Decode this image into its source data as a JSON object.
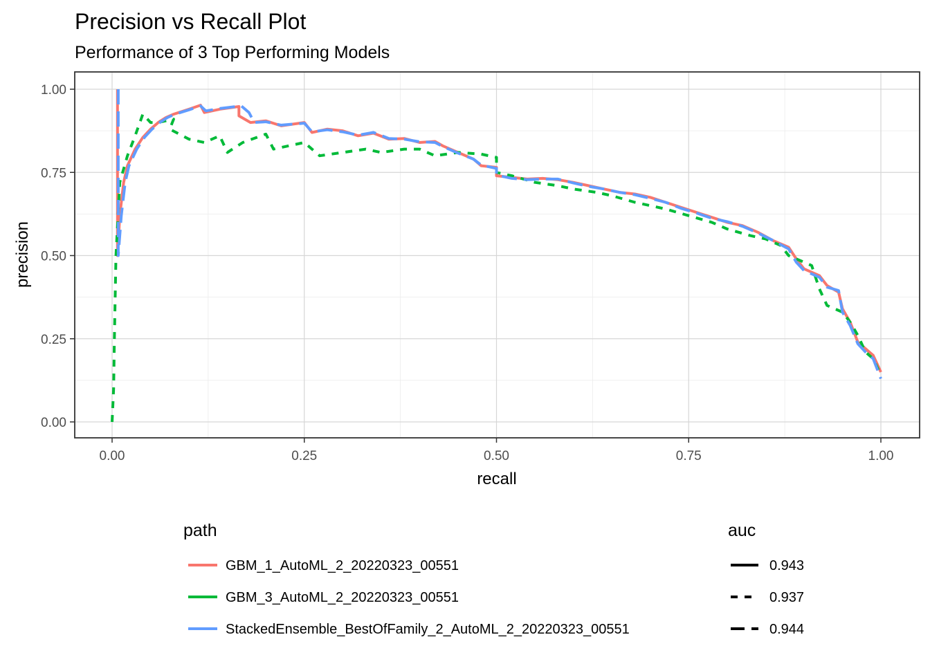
{
  "chart_data": {
    "type": "line",
    "title": "Precision vs Recall Plot",
    "subtitle": "Performance of 3 Top Performing Models",
    "xlabel": "recall",
    "ylabel": "precision",
    "xlim": [
      0,
      1
    ],
    "ylim": [
      0,
      1
    ],
    "xticks": [
      "0.00",
      "0.25",
      "0.50",
      "0.75",
      "1.00"
    ],
    "yticks": [
      "0.00",
      "0.25",
      "0.50",
      "0.75",
      "1.00"
    ],
    "grid": true,
    "legend_position": "bottom",
    "color_legend": {
      "title": "path",
      "entries": [
        {
          "label": "GBM_1_AutoML_2_20220323_00551",
          "color": "#F8766D"
        },
        {
          "label": "GBM_3_AutoML_2_20220323_00551",
          "color": "#00BA38"
        },
        {
          "label": "StackedEnsemble_BestOfFamily_2_AutoML_2_20220323_00551",
          "color": "#619CFF"
        }
      ]
    },
    "linetype_legend": {
      "title": "auc",
      "entries": [
        {
          "label": "0.943",
          "linetype": "solid"
        },
        {
          "label": "0.937",
          "linetype": "dashed"
        },
        {
          "label": "0.944",
          "linetype": "longdash"
        }
      ]
    },
    "series": [
      {
        "name": "GBM_1_AutoML_2_20220323_00551",
        "auc": "0.943",
        "color": "#F8766D",
        "linetype": "solid",
        "points": [
          [
            0.007,
            1.0
          ],
          [
            0.007,
            0.5
          ],
          [
            0.01,
            0.62
          ],
          [
            0.015,
            0.72
          ],
          [
            0.02,
            0.77
          ],
          [
            0.03,
            0.82
          ],
          [
            0.04,
            0.855
          ],
          [
            0.05,
            0.88
          ],
          [
            0.06,
            0.9
          ],
          [
            0.07,
            0.915
          ],
          [
            0.08,
            0.925
          ],
          [
            0.1,
            0.94
          ],
          [
            0.115,
            0.952
          ],
          [
            0.12,
            0.93
          ],
          [
            0.14,
            0.94
          ],
          [
            0.165,
            0.948
          ],
          [
            0.165,
            0.92
          ],
          [
            0.18,
            0.9
          ],
          [
            0.2,
            0.905
          ],
          [
            0.22,
            0.89
          ],
          [
            0.25,
            0.9
          ],
          [
            0.26,
            0.87
          ],
          [
            0.28,
            0.88
          ],
          [
            0.3,
            0.875
          ],
          [
            0.32,
            0.86
          ],
          [
            0.34,
            0.868
          ],
          [
            0.36,
            0.85
          ],
          [
            0.38,
            0.852
          ],
          [
            0.4,
            0.84
          ],
          [
            0.42,
            0.843
          ],
          [
            0.43,
            0.83
          ],
          [
            0.45,
            0.81
          ],
          [
            0.47,
            0.79
          ],
          [
            0.48,
            0.77
          ],
          [
            0.5,
            0.765
          ],
          [
            0.5,
            0.74
          ],
          [
            0.52,
            0.735
          ],
          [
            0.54,
            0.73
          ],
          [
            0.56,
            0.732
          ],
          [
            0.58,
            0.728
          ],
          [
            0.6,
            0.72
          ],
          [
            0.62,
            0.71
          ],
          [
            0.64,
            0.7
          ],
          [
            0.66,
            0.69
          ],
          [
            0.68,
            0.685
          ],
          [
            0.7,
            0.675
          ],
          [
            0.72,
            0.66
          ],
          [
            0.74,
            0.645
          ],
          [
            0.76,
            0.63
          ],
          [
            0.78,
            0.615
          ],
          [
            0.8,
            0.6
          ],
          [
            0.82,
            0.59
          ],
          [
            0.84,
            0.57
          ],
          [
            0.86,
            0.545
          ],
          [
            0.88,
            0.525
          ],
          [
            0.89,
            0.49
          ],
          [
            0.9,
            0.46
          ],
          [
            0.92,
            0.44
          ],
          [
            0.93,
            0.41
          ],
          [
            0.945,
            0.39
          ],
          [
            0.95,
            0.34
          ],
          [
            0.96,
            0.3
          ],
          [
            0.97,
            0.24
          ],
          [
            0.98,
            0.22
          ],
          [
            0.99,
            0.2
          ],
          [
            1.0,
            0.15
          ]
        ]
      },
      {
        "name": "GBM_3_AutoML_2_20220323_00551",
        "auc": "0.937",
        "color": "#00BA38",
        "linetype": "dashed",
        "points": [
          [
            0.0,
            0.0
          ],
          [
            0.002,
            0.1
          ],
          [
            0.003,
            0.25
          ],
          [
            0.005,
            0.5
          ],
          [
            0.01,
            0.72
          ],
          [
            0.02,
            0.8
          ],
          [
            0.03,
            0.86
          ],
          [
            0.04,
            0.925
          ],
          [
            0.05,
            0.9
          ],
          [
            0.06,
            0.9
          ],
          [
            0.08,
            0.91
          ],
          [
            0.075,
            0.88
          ],
          [
            0.1,
            0.85
          ],
          [
            0.12,
            0.84
          ],
          [
            0.14,
            0.86
          ],
          [
            0.15,
            0.81
          ],
          [
            0.17,
            0.84
          ],
          [
            0.2,
            0.865
          ],
          [
            0.21,
            0.82
          ],
          [
            0.23,
            0.83
          ],
          [
            0.25,
            0.84
          ],
          [
            0.27,
            0.8
          ],
          [
            0.3,
            0.81
          ],
          [
            0.33,
            0.82
          ],
          [
            0.35,
            0.81
          ],
          [
            0.38,
            0.82
          ],
          [
            0.4,
            0.82
          ],
          [
            0.42,
            0.8
          ],
          [
            0.45,
            0.81
          ],
          [
            0.48,
            0.805
          ],
          [
            0.5,
            0.795
          ],
          [
            0.5,
            0.75
          ],
          [
            0.52,
            0.74
          ],
          [
            0.55,
            0.72
          ],
          [
            0.58,
            0.71
          ],
          [
            0.6,
            0.7
          ],
          [
            0.63,
            0.69
          ],
          [
            0.65,
            0.68
          ],
          [
            0.68,
            0.66
          ],
          [
            0.7,
            0.65
          ],
          [
            0.72,
            0.64
          ],
          [
            0.75,
            0.62
          ],
          [
            0.78,
            0.6
          ],
          [
            0.8,
            0.58
          ],
          [
            0.83,
            0.56
          ],
          [
            0.85,
            0.55
          ],
          [
            0.87,
            0.53
          ],
          [
            0.88,
            0.5
          ],
          [
            0.9,
            0.48
          ],
          [
            0.91,
            0.47
          ],
          [
            0.92,
            0.4
          ],
          [
            0.93,
            0.35
          ],
          [
            0.95,
            0.33
          ],
          [
            0.96,
            0.3
          ],
          [
            0.97,
            0.26
          ],
          [
            0.98,
            0.21
          ],
          [
            0.99,
            0.19
          ],
          [
            1.0,
            0.14
          ]
        ]
      },
      {
        "name": "StackedEnsemble_BestOfFamily_2_AutoML_2_20220323_00551",
        "auc": "0.944",
        "color": "#619CFF",
        "linetype": "longdash",
        "points": [
          [
            0.008,
            1.0
          ],
          [
            0.008,
            0.5
          ],
          [
            0.012,
            0.62
          ],
          [
            0.017,
            0.72
          ],
          [
            0.022,
            0.77
          ],
          [
            0.032,
            0.82
          ],
          [
            0.042,
            0.855
          ],
          [
            0.052,
            0.88
          ],
          [
            0.062,
            0.9
          ],
          [
            0.072,
            0.915
          ],
          [
            0.082,
            0.925
          ],
          [
            0.1,
            0.938
          ],
          [
            0.115,
            0.95
          ],
          [
            0.122,
            0.935
          ],
          [
            0.14,
            0.942
          ],
          [
            0.168,
            0.95
          ],
          [
            0.178,
            0.93
          ],
          [
            0.185,
            0.9
          ],
          [
            0.2,
            0.902
          ],
          [
            0.22,
            0.892
          ],
          [
            0.25,
            0.898
          ],
          [
            0.26,
            0.872
          ],
          [
            0.28,
            0.878
          ],
          [
            0.3,
            0.872
          ],
          [
            0.32,
            0.862
          ],
          [
            0.34,
            0.87
          ],
          [
            0.36,
            0.852
          ],
          [
            0.38,
            0.85
          ],
          [
            0.4,
            0.842
          ],
          [
            0.42,
            0.84
          ],
          [
            0.43,
            0.828
          ],
          [
            0.45,
            0.808
          ],
          [
            0.47,
            0.79
          ],
          [
            0.48,
            0.772
          ],
          [
            0.5,
            0.762
          ],
          [
            0.5,
            0.742
          ],
          [
            0.52,
            0.732
          ],
          [
            0.54,
            0.728
          ],
          [
            0.56,
            0.73
          ],
          [
            0.58,
            0.73
          ],
          [
            0.6,
            0.718
          ],
          [
            0.62,
            0.708
          ],
          [
            0.64,
            0.7
          ],
          [
            0.66,
            0.69
          ],
          [
            0.68,
            0.683
          ],
          [
            0.7,
            0.672
          ],
          [
            0.72,
            0.66
          ],
          [
            0.74,
            0.642
          ],
          [
            0.76,
            0.628
          ],
          [
            0.78,
            0.612
          ],
          [
            0.8,
            0.602
          ],
          [
            0.82,
            0.588
          ],
          [
            0.84,
            0.568
          ],
          [
            0.86,
            0.545
          ],
          [
            0.88,
            0.52
          ],
          [
            0.89,
            0.48
          ],
          [
            0.9,
            0.455
          ],
          [
            0.92,
            0.435
          ],
          [
            0.93,
            0.405
          ],
          [
            0.945,
            0.395
          ],
          [
            0.95,
            0.33
          ],
          [
            0.96,
            0.29
          ],
          [
            0.97,
            0.235
          ],
          [
            0.98,
            0.21
          ],
          [
            0.99,
            0.19
          ],
          [
            1.0,
            0.13
          ]
        ]
      }
    ]
  }
}
